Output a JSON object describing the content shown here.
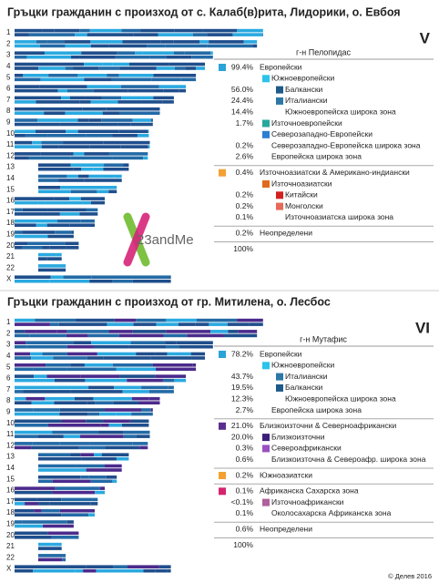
{
  "panels": [
    {
      "title": "Гръцки гражданин с произход от с. Калаб(в)рита, Лидорики, о. Евбоя",
      "roman": "V",
      "header": "г-н Пелопидас",
      "logo": "23andMe",
      "chromosomes": [
        "1",
        "2",
        "3",
        "4",
        "5",
        "6",
        "7",
        "8",
        "9",
        "10",
        "11",
        "12",
        "13",
        "14",
        "15",
        "16",
        "17",
        "18",
        "19",
        "20",
        "21",
        "22",
        "X"
      ],
      "groups": [
        {
          "pct": "99.4%",
          "label": "Европейски",
          "color": "#29a3d8",
          "children": [
            {
              "label": "Южноевропейски",
              "color": "#2bc3ea",
              "children": [
                {
                  "pct": "56.0%",
                  "label": "Балкански",
                  "color": "#1d5a8a"
                },
                {
                  "pct": "24.4%",
                  "label": "Италиански",
                  "color": "#2b78a6"
                },
                {
                  "pct": "14.4%",
                  "label": "Южноевропейска широка зона"
                }
              ]
            },
            {
              "pct": "1.7%",
              "label": "Източноевропейски",
              "color": "#27a89c"
            },
            {
              "label": "Северозападно-Европейски",
              "color": "#2c7fd0"
            },
            {
              "pct": "0.2%",
              "label": "Северозападно-Европейска широка зона"
            },
            {
              "pct": "2.6%",
              "label": "Европейска широка зона"
            }
          ]
        },
        {
          "pct": "0.4%",
          "label": "Източноазиатски & Американо-индиански",
          "color": "#f4a032",
          "children": [
            {
              "label": "Източноазиатски",
              "color": "#e06a1b",
              "children": [
                {
                  "pct": "0.2%",
                  "label": "Китайски",
                  "color": "#d42020"
                },
                {
                  "pct": "0.2%",
                  "label": "Монголски",
                  "color": "#e8695a"
                },
                {
                  "pct": "0.1%",
                  "label": "Източноазиатска широка зона"
                }
              ]
            }
          ]
        },
        {
          "pct": "0.2%",
          "label": "Неопределени"
        },
        {
          "pct": "100%"
        }
      ]
    },
    {
      "title": "Гръцки гражданин с произход от гр. Митилена, о. Лесбос",
      "roman": "VI",
      "header": "г-н Мутафис",
      "chromosomes": [
        "1",
        "2",
        "3",
        "4",
        "5",
        "6",
        "7",
        "8",
        "9",
        "10",
        "11",
        "12",
        "13",
        "14",
        "15",
        "16",
        "17",
        "18",
        "19",
        "20",
        "21",
        "22",
        "X"
      ],
      "groups": [
        {
          "pct": "78.2%",
          "label": "Европейски",
          "color": "#29a3d8",
          "children": [
            {
              "label": "Южноевропейски",
              "color": "#2bc3ea",
              "children": [
                {
                  "pct": "43.7%",
                  "label": "Италиански",
                  "color": "#2b78a6"
                },
                {
                  "pct": "19.5%",
                  "label": "Балкански",
                  "color": "#1d5a8a"
                },
                {
                  "pct": "12.3%",
                  "label": "Южноевропейска широка зона"
                }
              ]
            },
            {
              "pct": "2.7%",
              "label": "Европейска широка зона"
            }
          ]
        },
        {
          "pct": "21.0%",
          "label": "Близкоизточни & Севернoафрикански",
          "color": "#5b2d8e",
          "children": [
            {
              "pct": "20.0%",
              "label": "Близкоизточни",
              "color": "#3a1f7a"
            },
            {
              "pct": "0.3%",
              "label": "Североафрикански",
              "color": "#9b4fc0"
            },
            {
              "pct": "0.6%",
              "label": "Близкоизточна & Североафр. широка зона"
            }
          ]
        },
        {
          "pct": "0.2%",
          "label": "Южноазиатски",
          "color": "#f4a032"
        },
        {
          "pct": "0.1%",
          "label": "Африканска Сахарска зона",
          "color": "#d6246e",
          "children": [
            {
              "pct": "<0.1%",
              "label": "Източноафрикански",
              "color": "#b0609a"
            },
            {
              "pct": "0.1%",
              "label": "Околосахарска Африканска зона"
            }
          ]
        },
        {
          "pct": "0.6%",
          "label": "Неопределени"
        },
        {
          "pct": "100%"
        }
      ]
    }
  ],
  "footer": "© Делев 2016"
}
